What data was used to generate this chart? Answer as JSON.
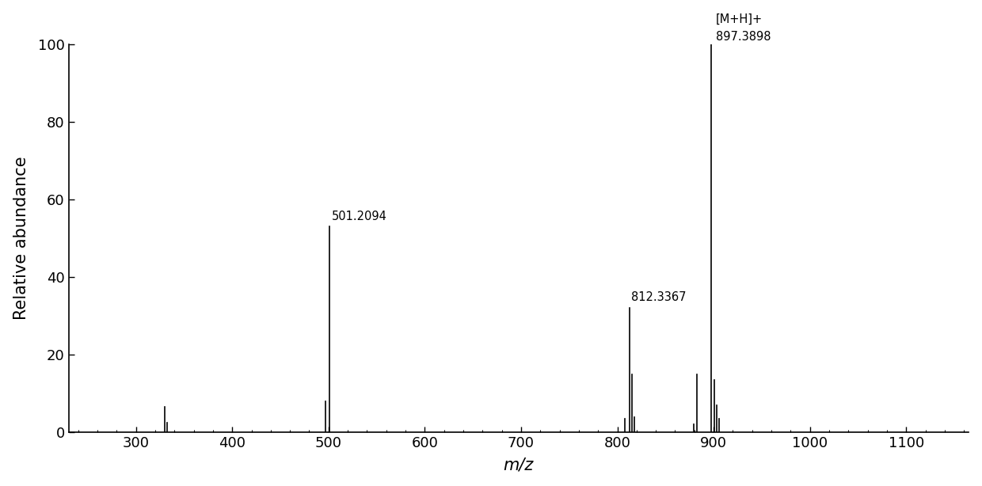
{
  "peaks": [
    {
      "mz": 330.0,
      "intensity": 6.5,
      "label": null
    },
    {
      "mz": 332.5,
      "intensity": 2.5,
      "label": null
    },
    {
      "mz": 497.0,
      "intensity": 8.0,
      "label": null
    },
    {
      "mz": 501.2094,
      "intensity": 53.0,
      "label": "501.2094"
    },
    {
      "mz": 808.0,
      "intensity": 3.5,
      "label": null
    },
    {
      "mz": 812.3367,
      "intensity": 32.0,
      "label": "812.3367"
    },
    {
      "mz": 815.0,
      "intensity": 15.0,
      "label": null
    },
    {
      "mz": 818.0,
      "intensity": 4.0,
      "label": null
    },
    {
      "mz": 879.5,
      "intensity": 2.0,
      "label": null
    },
    {
      "mz": 883.0,
      "intensity": 15.0,
      "label": null
    },
    {
      "mz": 897.3898,
      "intensity": 100.0,
      "label": "897.3898",
      "annotation": "[M+H]+"
    },
    {
      "mz": 900.5,
      "intensity": 13.5,
      "label": null
    },
    {
      "mz": 903.0,
      "intensity": 7.0,
      "label": null
    },
    {
      "mz": 905.5,
      "intensity": 3.5,
      "label": null
    }
  ],
  "xmin": 230,
  "xmax": 1165,
  "ymin": 0,
  "ymax": 100,
  "xlabel": "m/z",
  "ylabel": "Relative abundance",
  "xticks": [
    300,
    400,
    500,
    600,
    700,
    800,
    900,
    1000,
    1100
  ],
  "yticks": [
    0,
    20,
    40,
    60,
    80,
    100
  ],
  "line_color": "#000000",
  "background_color": "#ffffff",
  "label_fontsize": 10.5,
  "axis_label_fontsize": 15,
  "tick_fontsize": 13,
  "annotation_label": "[M+H]+\n897.3898",
  "annotation_mz": 897.3898,
  "annotation_intensity": 100.0
}
